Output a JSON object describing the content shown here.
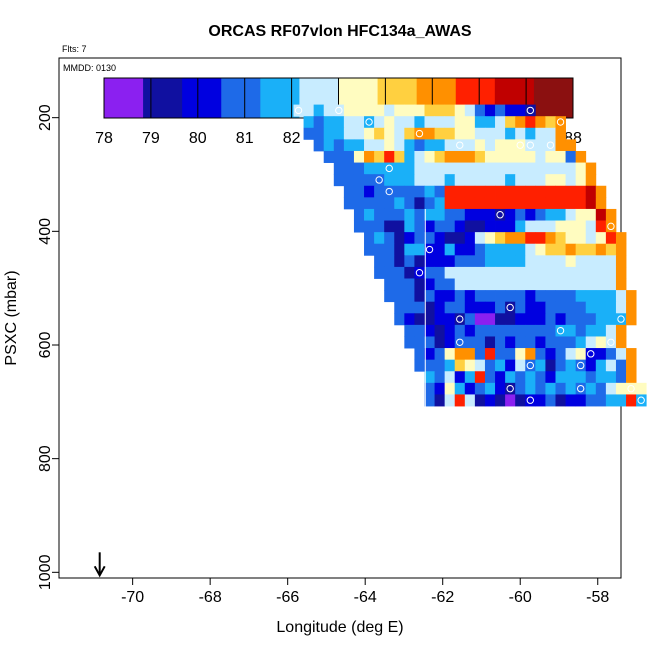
{
  "chart_data": {
    "type": "heatmap",
    "title": "ORCAS RF07vlon HFC134a_AWAS",
    "flight_label": "Flts: 7",
    "date_label": "MMDD: 0130",
    "xlabel": "Longitude (deg E)",
    "ylabel": "PSXC (mbar)",
    "xlim": [
      -71.9,
      -57.4
    ],
    "ylim": [
      1010,
      95
    ],
    "x_ticks": [
      -70,
      -68,
      -66,
      -64,
      -62,
      -60,
      -58
    ],
    "y_ticks": [
      200,
      400,
      600,
      800,
      1000
    ],
    "colorbar": {
      "min": 78,
      "max": 88,
      "ticks": [
        78,
        79,
        80,
        81,
        82,
        83,
        84,
        85,
        86,
        87,
        88
      ],
      "colors": [
        "#8b20f0",
        "#1010a0",
        "#0000e0",
        "#1e6ae8",
        "#1ab0f8",
        "#c8ecff",
        "#fffcc0",
        "#ffd040",
        "#ff9000",
        "#ff2000",
        "#c00000",
        "#8b1010"
      ]
    },
    "marker": {
      "longitude": -70.85,
      "pressure": 1000,
      "label": "arrow"
    },
    "vertical_line_longitude": -62.45,
    "grid": {
      "lon_start": -65.85,
      "lon_step": 0.26,
      "p_start": 177,
      "p_step": 20.4
    },
    "rows": [
      {
        "start": 0,
        "values": [
          82.6,
          82.3,
          81.8,
          82.5,
          82.9,
          83.2,
          83.4,
          83.5,
          83.0,
          82.7,
          83.2,
          83.5,
          83.8,
          84.0,
          84.1,
          84.0,
          83.6,
          82.4,
          81.3,
          80.2,
          80.8,
          79.8,
          80.4,
          79.0
        ]
      },
      {
        "start": 1,
        "values": [
          81.6,
          81.0,
          81.5,
          82.0,
          82.4,
          82.2,
          82.0,
          82.6,
          83.0,
          82.7,
          82.3,
          82.0,
          82.4,
          82.6,
          82.7,
          83.2,
          83.0,
          81.8,
          81.4,
          82.4,
          84.6,
          85.3,
          85.8,
          85.2,
          84.4,
          85.4
        ]
      },
      {
        "start": 1,
        "values": [
          80.9,
          81.3,
          81.6,
          82.0,
          82.5,
          82.3,
          83.5,
          84.3,
          83.0,
          82.6,
          84.0,
          85.0,
          85.4,
          84.6,
          84.5,
          83.8,
          83.2,
          82.5,
          82.6,
          82.8,
          81.6,
          82.6,
          82.0,
          82.4,
          82.7,
          85.4
        ]
      },
      {
        "start": 2,
        "values": [
          81.2,
          81.5,
          81.0,
          81.7,
          82.1,
          82.5,
          82.8,
          83.0,
          82.5,
          81.7,
          81.3,
          81.6,
          82.0,
          82.7,
          82.8,
          82.8,
          83.3,
          82.8,
          83.4,
          83.8,
          83.3,
          82.5,
          82.6,
          82.7,
          84.9,
          85.4
        ]
      },
      {
        "start": 3,
        "values": [
          80.8,
          81.1,
          81.2,
          83.6,
          85.0,
          84.5,
          86.0,
          84.5,
          81.6,
          82.6,
          83.8,
          84.6,
          85.0,
          85.2,
          84.7,
          84.3,
          83.8,
          83.4,
          83.6,
          83.2,
          83.0,
          82.6,
          83.0,
          83.0,
          81.2,
          85.4
        ]
      },
      {
        "start": 4,
        "values": [
          80.6,
          80.9,
          81.2,
          81.4,
          81.5,
          82.0,
          81.7,
          82.0,
          82.5,
          82.7,
          82.5,
          82.2,
          82.6,
          82.2,
          82.4,
          82.7,
          82.6,
          82.5,
          82.2,
          82.3,
          82.5,
          82.7,
          82.8,
          82.9,
          83.3,
          85.4
        ]
      },
      {
        "start": 4,
        "values": [
          80.8,
          81.0,
          81.3,
          80.8,
          81.3,
          81.6,
          81.9,
          82.0,
          82.6,
          82.6,
          82.2,
          82.0,
          82.3,
          82.2,
          82.4,
          82.3,
          82.4,
          82.0,
          82.5,
          82.7,
          82.9,
          83.0,
          83.1,
          82.8,
          83.0,
          85.4
        ]
      },
      {
        "start": 5,
        "values": [
          80.6,
          81.0,
          80.4,
          80.8,
          81.0,
          81.3,
          81.0,
          80.9,
          81.5,
          80.6,
          85.6,
          85.7,
          85.7,
          85.6,
          85.6,
          85.7,
          85.7,
          85.6,
          85.6,
          85.7,
          85.7,
          85.7,
          85.6,
          85.7,
          86.5,
          85.4
        ]
      },
      {
        "start": 5,
        "values": [
          80.9,
          80.6,
          81.0,
          80.7,
          81.2,
          81.5,
          80.6,
          79.3,
          80.7,
          81.7,
          85.6,
          85.6,
          85.7,
          85.6,
          85.6,
          85.7,
          85.6,
          85.6,
          85.6,
          85.7,
          85.6,
          85.6,
          85.7,
          85.6,
          86.5,
          85.4
        ]
      },
      {
        "start": 6,
        "values": [
          81.0,
          81.4,
          81.0,
          80.7,
          81.1,
          81.4,
          81.0,
          81.6,
          81.9,
          80.5,
          81.2,
          80.0,
          79.8,
          80.0,
          79.5,
          79.7,
          80.9,
          80.4,
          80.8,
          81.6,
          82.0,
          82.6,
          83.0,
          83.2,
          86.5,
          85.4
        ]
      },
      {
        "start": 6,
        "values": [
          80.8,
          81.2,
          80.7,
          79.6,
          79.4,
          81.6,
          81.0,
          80.2,
          80.6,
          80.5,
          80.0,
          79.6,
          79.6,
          80.2,
          79.8,
          80.2,
          81.4,
          82.2,
          82.5,
          82.8,
          83.2,
          83.5,
          83.3,
          82.9,
          86.0,
          85.4
        ]
      },
      {
        "start": 7,
        "values": [
          81.2,
          81.5,
          81.3,
          79.5,
          80.0,
          80.8,
          81.2,
          79.8,
          79.6,
          79.4,
          80.2,
          82.5,
          83.5,
          84.6,
          85.0,
          85.4,
          85.8,
          85.7,
          85.2,
          84.5,
          83.6,
          83.0,
          82.5,
          83.0,
          85.8,
          85.4
        ]
      },
      {
        "start": 7,
        "values": [
          80.5,
          80.9,
          81.2,
          79.0,
          81.4,
          81.6,
          80.0,
          80.4,
          81.7,
          80.2,
          79.8,
          80.6,
          81.5,
          81.8,
          81.4,
          82.0,
          82.6,
          83.2,
          84.0,
          84.6,
          84.8,
          84.4,
          84.6,
          84.8,
          84.0,
          85.4
        ]
      },
      {
        "start": 8,
        "values": [
          80.7,
          81.0,
          79.4,
          80.6,
          79.6,
          80.1,
          80.4,
          80.2,
          80.7,
          80.9,
          81.3,
          81.6,
          82.1,
          82.0,
          81.5,
          82.2,
          82.6,
          82.4,
          82.8,
          83.0,
          82.6,
          82.3,
          82.7,
          82.9,
          85.4
        ]
      },
      {
        "start": 8,
        "values": [
          81.0,
          80.7,
          80.8,
          79.4,
          80.4,
          80.7,
          80.9,
          82.6,
          82.6,
          82.6,
          82.6,
          82.6,
          82.6,
          82.6,
          82.6,
          82.6,
          82.6,
          82.6,
          82.6,
          82.6,
          82.6,
          82.6,
          82.6,
          82.6,
          85.4
        ]
      },
      {
        "start": 9,
        "values": [
          80.9,
          81.2,
          80.6,
          79.3,
          80.2,
          80.5,
          80.8,
          82.6,
          82.6,
          82.6,
          82.6,
          82.6,
          82.6,
          82.6,
          82.6,
          82.6,
          82.6,
          82.6,
          82.6,
          82.6,
          82.6,
          82.6,
          82.6,
          85.4
        ]
      },
      {
        "start": 9,
        "values": [
          80.6,
          80.8,
          81.2,
          79.0,
          80.6,
          80.1,
          80.4,
          80.6,
          80.3,
          80.9,
          80.7,
          81.3,
          80.9,
          81.0,
          80.4,
          80.8,
          81.1,
          80.6,
          81.2,
          81.5,
          81.8,
          81.6,
          82.0,
          82.3,
          85.4
        ]
      },
      {
        "start": 10,
        "values": [
          81.2,
          80.5,
          80.8,
          79.2,
          80.2,
          80.5,
          80.9,
          79.9,
          80.4,
          80.0,
          80.6,
          79.3,
          80.8,
          80.3,
          80.0,
          80.5,
          80.9,
          81.2,
          80.6,
          81.7,
          81.4,
          81.8,
          82.2,
          85.4
        ]
      },
      {
        "start": 10,
        "values": [
          80.6,
          80.4,
          79.4,
          79.6,
          80.0,
          80.4,
          79.2,
          80.6,
          78.6,
          78.2,
          79.0,
          79.6,
          80.1,
          79.8,
          80.3,
          80.5,
          80.4,
          80.9,
          80.7,
          81.3,
          81.5,
          81.7,
          82.0,
          85.4
        ]
      },
      {
        "start": 11,
        "values": [
          80.8,
          81.1,
          80.3,
          79.6,
          80.1,
          80.7,
          80.4,
          80.8,
          80.6,
          81.0,
          80.9,
          81.3,
          81.0,
          80.8,
          81.2,
          81.5,
          81.6,
          81.2,
          81.8,
          82.0,
          82.3,
          85.4
        ]
      },
      {
        "start": 11,
        "values": [
          80.9,
          81.2,
          80.7,
          79.6,
          80.0,
          80.6,
          80.9,
          80.5,
          79.4,
          80.6,
          80.2,
          80.5,
          80.8,
          80.1,
          80.5,
          80.9,
          80.7,
          82.0,
          82.4,
          83.2,
          82.6,
          85.4
        ]
      },
      {
        "start": 12,
        "values": [
          81.3,
          80.4,
          81.0,
          83.3,
          85.4,
          84.8,
          81.1,
          85.6,
          80.6,
          81.3,
          83.8,
          85.2,
          80.5,
          80.0,
          81.2,
          82.7,
          83.4,
          80.3,
          79.8,
          81.0,
          82.2,
          85.4
        ]
      },
      {
        "start": 12,
        "values": [
          80.8,
          81.3,
          80.5,
          81.8,
          84.3,
          83.2,
          82.3,
          80.7,
          81.6,
          80.4,
          82.4,
          81.0,
          81.6,
          79.6,
          80.8,
          82.0,
          81.3,
          80.4,
          81.6,
          82.4,
          81.0,
          85.4
        ]
      },
      {
        "start": 13,
        "values": [
          81.7,
          81.1,
          82.4,
          80.3,
          81.4,
          85.8,
          81.2,
          80.4,
          81.8,
          80.6,
          82.1,
          80.8,
          80.0,
          81.4,
          81.5,
          81.8,
          81.2,
          81.5,
          81.9,
          81.3,
          85.4
        ]
      },
      {
        "start": 13,
        "values": [
          80.9,
          80.3,
          83.8,
          81.6,
          80.2,
          80.9,
          81.4,
          80.0,
          79.6,
          80.5,
          81.9,
          81.3,
          81.6,
          81.3,
          81.4,
          81.2,
          81.7,
          81.3,
          82.5,
          83.5,
          83.4,
          83.0
        ]
      },
      {
        "start": 13,
        "values": [
          80.9,
          79.4,
          82.7,
          85.8,
          82.8,
          79.6,
          79.8,
          79.3,
          78.8,
          79.4,
          79.7,
          80.2,
          81.3,
          79.6,
          80.4,
          80.0,
          80.8,
          81.0,
          81.5,
          82.0,
          85.8,
          81.9
        ]
      }
    ]
  }
}
